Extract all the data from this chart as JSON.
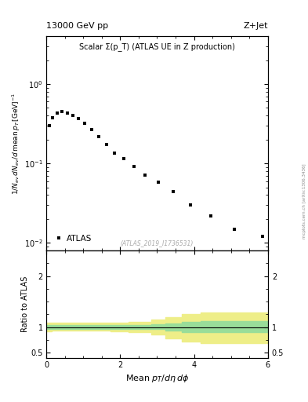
{
  "title_left": "13000 GeV pp",
  "title_right": "Z+Jet",
  "plot_title": "Scalar Σ(p_T) (ATLAS UE in Z production)",
  "watermark": "(ATLAS_2019_I1736531)",
  "arxiv_text": "mcplots.cern.ch [arXiv:1306.3436]",
  "xlabel": "Mean $p_T$/d$\\eta$ d$\\phi$",
  "legend_label": "ATLAS",
  "data_x": [
    0.08,
    0.18,
    0.3,
    0.43,
    0.57,
    0.72,
    0.88,
    1.05,
    1.23,
    1.42,
    1.63,
    1.85,
    2.1,
    2.37,
    2.68,
    3.03,
    3.43,
    3.9,
    4.45,
    5.1,
    5.85
  ],
  "data_y": [
    0.3,
    0.38,
    0.43,
    0.45,
    0.43,
    0.4,
    0.37,
    0.32,
    0.27,
    0.22,
    0.175,
    0.135,
    0.115,
    0.092,
    0.072,
    0.058,
    0.044,
    0.03,
    0.022,
    0.015,
    0.012
  ],
  "ratio_x_edges": [
    0.0,
    0.15,
    0.27,
    0.4,
    0.52,
    0.65,
    0.8,
    0.96,
    1.14,
    1.32,
    1.52,
    1.74,
    1.97,
    2.23,
    2.52,
    2.85,
    3.23,
    3.66,
    4.17,
    4.77,
    5.47,
    6.0
  ],
  "ratio_green_upper": [
    1.04,
    1.04,
    1.04,
    1.04,
    1.04,
    1.04,
    1.04,
    1.04,
    1.04,
    1.04,
    1.04,
    1.04,
    1.04,
    1.04,
    1.04,
    1.05,
    1.07,
    1.1,
    1.12,
    1.12,
    1.12
  ],
  "ratio_green_lower": [
    0.97,
    0.97,
    0.97,
    0.97,
    0.97,
    0.97,
    0.97,
    0.97,
    0.97,
    0.97,
    0.97,
    0.97,
    0.97,
    0.97,
    0.97,
    0.96,
    0.94,
    0.91,
    0.9,
    0.9,
    0.9
  ],
  "ratio_yellow_upper": [
    1.09,
    1.08,
    1.08,
    1.08,
    1.08,
    1.08,
    1.08,
    1.08,
    1.08,
    1.08,
    1.08,
    1.09,
    1.09,
    1.1,
    1.11,
    1.15,
    1.2,
    1.25,
    1.28,
    1.28,
    1.28
  ],
  "ratio_yellow_lower": [
    0.92,
    0.93,
    0.93,
    0.93,
    0.93,
    0.93,
    0.93,
    0.93,
    0.93,
    0.93,
    0.93,
    0.92,
    0.92,
    0.91,
    0.9,
    0.85,
    0.78,
    0.72,
    0.68,
    0.68,
    0.68
  ],
  "marker_color": "#000000",
  "green_color": "#99dd99",
  "yellow_color": "#eeee88",
  "ylim_main": [
    0.008,
    4.0
  ],
  "ylim_ratio": [
    0.4,
    2.5
  ],
  "xlim": [
    0,
    6.0
  ],
  "yticks_ratio": [
    0.5,
    1.0,
    2.0
  ],
  "background_color": "#ffffff"
}
